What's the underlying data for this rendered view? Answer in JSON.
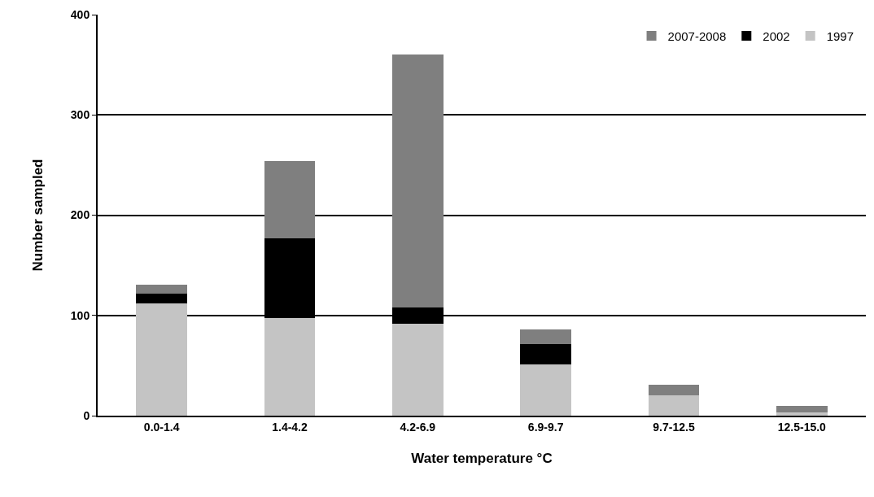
{
  "chart_data": {
    "type": "bar",
    "stacked": true,
    "xlabel": "Water temperature °C",
    "ylabel": "Number sampled",
    "categories": [
      "0.0-1.4",
      "1.4-4.2",
      "4.2-6.9",
      "6.9-9.7",
      "9.7-12.5",
      "12.5-15.0"
    ],
    "series": [
      {
        "name": "1997",
        "color": "#c4c4c4",
        "values": [
          112,
          97,
          92,
          51,
          20,
          3
        ]
      },
      {
        "name": "2002",
        "color": "#000000",
        "values": [
          10,
          80,
          16,
          20,
          0,
          0
        ]
      },
      {
        "name": "2007-2008",
        "color": "#7f7f7f",
        "values": [
          9,
          77,
          252,
          15,
          11,
          7
        ]
      }
    ],
    "ylim": [
      0,
      400
    ],
    "yticks": [
      0,
      100,
      200,
      300,
      400
    ],
    "grid": "y",
    "legend": "top right"
  }
}
